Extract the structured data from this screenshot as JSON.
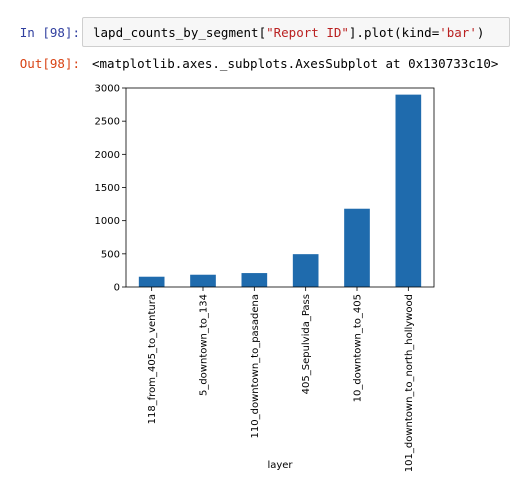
{
  "cell": {
    "in_prompt": "In [98]:",
    "code_var": "lapd_counts_by_segment",
    "code_open": "[",
    "code_str": "\"Report ID\"",
    "code_mid": "].plot(kind=",
    "code_arg": "'bar'",
    "code_close": ")",
    "out_prompt": "Out[98]:",
    "out_text": "<matplotlib.axes._subplots.AxesSubplot at 0x130733c10>"
  },
  "colors": {
    "bar": "#1f6bad",
    "string": "#ba2121",
    "in_prompt": "#303f9f",
    "out_prompt": "#d84315"
  },
  "chart_data": {
    "type": "bar",
    "categories": [
      "118_from_405_to_ventura",
      "5_downtown_to_134",
      "110_downtown_to_pasadena",
      "405_Sepulvida_Pass",
      "10_downtown_to_405",
      "101_downtown_to_north_hollywood"
    ],
    "values": [
      155,
      185,
      210,
      495,
      1180,
      2900
    ],
    "xlabel": "layer",
    "ylabel": "",
    "ylim": [
      0,
      3000
    ],
    "yticks": [
      0,
      500,
      1000,
      1500,
      2000,
      2500,
      3000
    ],
    "grid": false,
    "legend": "none"
  }
}
